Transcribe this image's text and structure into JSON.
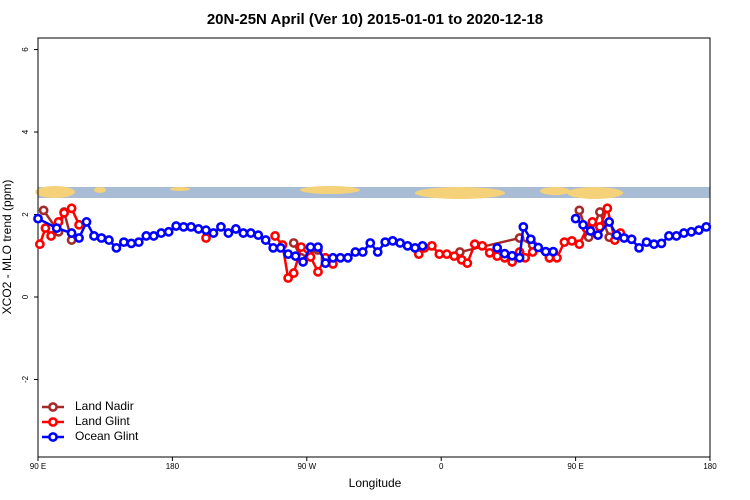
{
  "chart_data": {
    "type": "line",
    "title": "20N-25N April (Ver 10)   2015-01-01 to 2020-12-18",
    "x_label": "Longitude",
    "y_label": "XCO2 - MLO trend (ppm)",
    "xlim": [
      90,
      540
    ],
    "xticks": [
      {
        "value": 90,
        "label": "90 E"
      },
      180,
      {
        "value": 270,
        "label": "90 W"
      },
      {
        "value": 360,
        "label": "0"
      },
      {
        "value": 450,
        "label": "90 E"
      },
      {
        "value": 540,
        "label": "180"
      }
    ],
    "ylim": [
      -3.88,
      6.28
    ],
    "yticks": [
      6,
      4,
      2,
      0,
      -2
    ],
    "legend": "bottom-left",
    "series": [
      {
        "name": "Land Nadir",
        "color": "#a52a2a",
        "x": [
          93.75,
          103.75,
          107.5,
          112.5,
          null,
          261.25,
          266.25,
          277.5,
          282.5,
          null,
          372.5,
          412.5,
          421.25,
          432.5,
          null,
          452.5,
          458.75,
          466.25,
          472.5
        ],
        "values": [
          2.1,
          1.58,
          2.06,
          1.38,
          null,
          1.31,
          0.95,
          1.14,
          0.9,
          null,
          1.09,
          1.43,
          1.26,
          0.95,
          null,
          2.1,
          1.45,
          2.06,
          1.45
        ]
      },
      {
        "name": "Land Glint",
        "color": "#ff0000",
        "x": [
          91.25,
          95,
          98.75,
          103.75,
          107.5,
          112.5,
          117.5,
          null,
          202.5,
          null,
          248.75,
          253.75,
          257.5,
          261.25,
          266.25,
          272.5,
          277.5,
          282.5,
          287.5,
          null,
          345,
          348.75,
          353.75,
          358.75,
          363.75,
          368.75,
          373.75,
          377.5,
          382.5,
          387.5,
          392.5,
          397.5,
          402.5,
          407.5,
          412.5,
          416.25,
          421.25,
          null,
          432.5,
          437.5,
          442.5,
          447.5,
          452.5,
          457.5,
          461.25,
          466.25,
          471.25,
          476.25,
          480
        ],
        "values": [
          1.28,
          1.67,
          1.48,
          1.82,
          2.04,
          2.15,
          1.75,
          null,
          1.43,
          null,
          1.48,
          1.26,
          0.46,
          0.58,
          1.21,
          0.97,
          0.61,
          0.95,
          0.8,
          null,
          1.04,
          1.19,
          1.24,
          1.04,
          1.04,
          0.99,
          0.9,
          0.82,
          1.28,
          1.24,
          1.07,
          0.99,
          0.95,
          0.85,
          1.09,
          0.95,
          1.09,
          null,
          0.95,
          0.95,
          1.33,
          1.36,
          1.28,
          1.65,
          1.82,
          1.7,
          2.15,
          1.38,
          1.55
        ]
      },
      {
        "name": "Ocean Glint",
        "color": "#0000ff",
        "x": [
          90,
          102.5,
          112.5,
          117.5,
          122.5,
          127.5,
          132.5,
          137.5,
          142.5,
          147.5,
          152.5,
          157.5,
          162.5,
          167.5,
          172.5,
          177.5,
          182.5,
          187.5,
          192.5,
          197.5,
          202.5,
          207.5,
          212.5,
          217.5,
          222.5,
          227.5,
          232.5,
          237.5,
          242.5,
          247.5,
          252.5,
          257.5,
          262.5,
          267.5,
          272.5,
          277.5,
          282.5,
          287.5,
          292.5,
          297.5,
          302.5,
          307.5,
          312.5,
          317.5,
          322.5,
          327.5,
          332.5,
          337.5,
          342.5,
          347.5,
          null,
          397.5,
          402.5,
          407.5,
          412.5,
          415,
          420,
          425,
          430,
          435,
          null,
          450,
          455,
          460,
          465,
          472.5,
          477.5,
          482.5,
          487.5,
          492.5,
          497.5,
          502.5,
          507.5,
          512.5,
          517.5,
          522.5,
          527.5,
          532.5,
          537.5
        ],
        "values": [
          1.9,
          1.67,
          1.55,
          1.43,
          1.82,
          1.48,
          1.43,
          1.38,
          1.19,
          1.33,
          1.3,
          1.33,
          1.48,
          1.48,
          1.55,
          1.58,
          1.72,
          1.7,
          1.7,
          1.65,
          1.62,
          1.55,
          1.7,
          1.55,
          1.65,
          1.55,
          1.55,
          1.5,
          1.38,
          1.19,
          1.19,
          1.04,
          0.99,
          0.85,
          1.21,
          1.21,
          0.82,
          0.95,
          0.95,
          0.95,
          1.09,
          1.09,
          1.31,
          1.09,
          1.33,
          1.36,
          1.31,
          1.24,
          1.19,
          1.24,
          null,
          1.19,
          1.05,
          1.0,
          0.95,
          1.7,
          1.4,
          1.2,
          1.1,
          1.1,
          null,
          1.9,
          1.75,
          1.6,
          1.5,
          1.82,
          1.5,
          1.43,
          1.4,
          1.19,
          1.33,
          1.28,
          1.3,
          1.48,
          1.48,
          1.55,
          1.58,
          1.62,
          1.7
        ]
      }
    ]
  }
}
